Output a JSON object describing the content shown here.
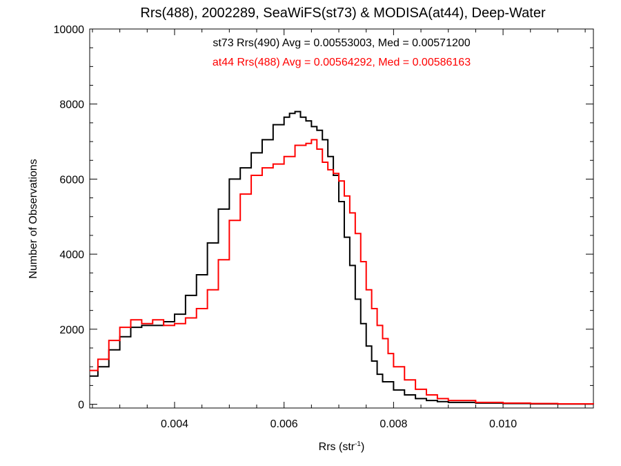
{
  "chart_data": {
    "type": "line",
    "style": "step-histogram",
    "title": "Rrs(488), 2002289, SeaWiFS(st73) & MODISA(at44), Deep-Water",
    "xlabel_base": "Rrs (str",
    "xlabel_sup": "-1",
    "xlabel_tail": ")",
    "ylabel": "Number of Observations",
    "xlim": [
      0.00245,
      0.01165
    ],
    "ylim": [
      -100,
      10000
    ],
    "xticks": [
      0.004,
      0.006,
      0.008,
      0.01
    ],
    "xtick_labels": [
      "0.004",
      "0.006",
      "0.008",
      "0.010"
    ],
    "yticks": [
      0,
      2000,
      4000,
      6000,
      8000,
      10000
    ],
    "ytick_labels": [
      "0",
      "2000",
      "4000",
      "6000",
      "8000",
      "10000"
    ],
    "grid": false,
    "annotations": [
      {
        "text": "st73 Rrs(490) Avg = 0.00553003, Med = 0.00571200",
        "color": "#000000"
      },
      {
        "text": "at44 Rrs(488) Avg = 0.00564292, Med = 0.00586163",
        "color": "#ff0000"
      }
    ],
    "series": [
      {
        "color": "#000000",
        "x": [
          0.00245,
          0.0026,
          0.0028,
          0.003,
          0.0032,
          0.0034,
          0.0036,
          0.0038,
          0.004,
          0.0042,
          0.0044,
          0.0046,
          0.0048,
          0.005,
          0.0052,
          0.0054,
          0.0056,
          0.0058,
          0.006,
          0.0061,
          0.0062,
          0.0063,
          0.0064,
          0.0065,
          0.0066,
          0.0067,
          0.0068,
          0.0069,
          0.007,
          0.0071,
          0.0072,
          0.0073,
          0.0074,
          0.0075,
          0.0076,
          0.0077,
          0.0078,
          0.008,
          0.0082,
          0.0084,
          0.0086,
          0.0088,
          0.009,
          0.0095,
          0.01,
          0.0105,
          0.011,
          0.01165
        ],
        "y": [
          750,
          1000,
          1450,
          1800,
          2050,
          2100,
          2100,
          2200,
          2400,
          2900,
          3450,
          4300,
          5200,
          6000,
          6300,
          6700,
          7050,
          7450,
          7650,
          7750,
          7800,
          7650,
          7550,
          7400,
          7300,
          7050,
          6600,
          6100,
          5400,
          4450,
          3700,
          2800,
          2150,
          1550,
          1150,
          800,
          600,
          380,
          250,
          150,
          100,
          70,
          50,
          30,
          20,
          10,
          5,
          0
        ]
      },
      {
        "color": "#ff0000",
        "x": [
          0.00245,
          0.0026,
          0.0028,
          0.003,
          0.0032,
          0.0034,
          0.0036,
          0.0038,
          0.004,
          0.0042,
          0.0044,
          0.0046,
          0.0048,
          0.005,
          0.0052,
          0.0054,
          0.0056,
          0.0058,
          0.006,
          0.0062,
          0.0064,
          0.0065,
          0.0066,
          0.0067,
          0.0068,
          0.0069,
          0.007,
          0.0071,
          0.0072,
          0.0073,
          0.0074,
          0.0075,
          0.0076,
          0.0077,
          0.0078,
          0.0079,
          0.008,
          0.0082,
          0.0084,
          0.0086,
          0.0088,
          0.009,
          0.0095,
          0.01,
          0.0105,
          0.011,
          0.01165
        ],
        "y": [
          900,
          1200,
          1700,
          2050,
          2250,
          2150,
          2250,
          2100,
          2150,
          2300,
          2550,
          3050,
          3850,
          4900,
          5600,
          6100,
          6300,
          6400,
          6600,
          6900,
          6950,
          7050,
          6800,
          6450,
          6250,
          6150,
          5950,
          5550,
          5100,
          4550,
          3800,
          3050,
          2550,
          2100,
          1750,
          1350,
          1000,
          650,
          400,
          250,
          150,
          100,
          50,
          30,
          20,
          10,
          5
        ]
      }
    ]
  }
}
